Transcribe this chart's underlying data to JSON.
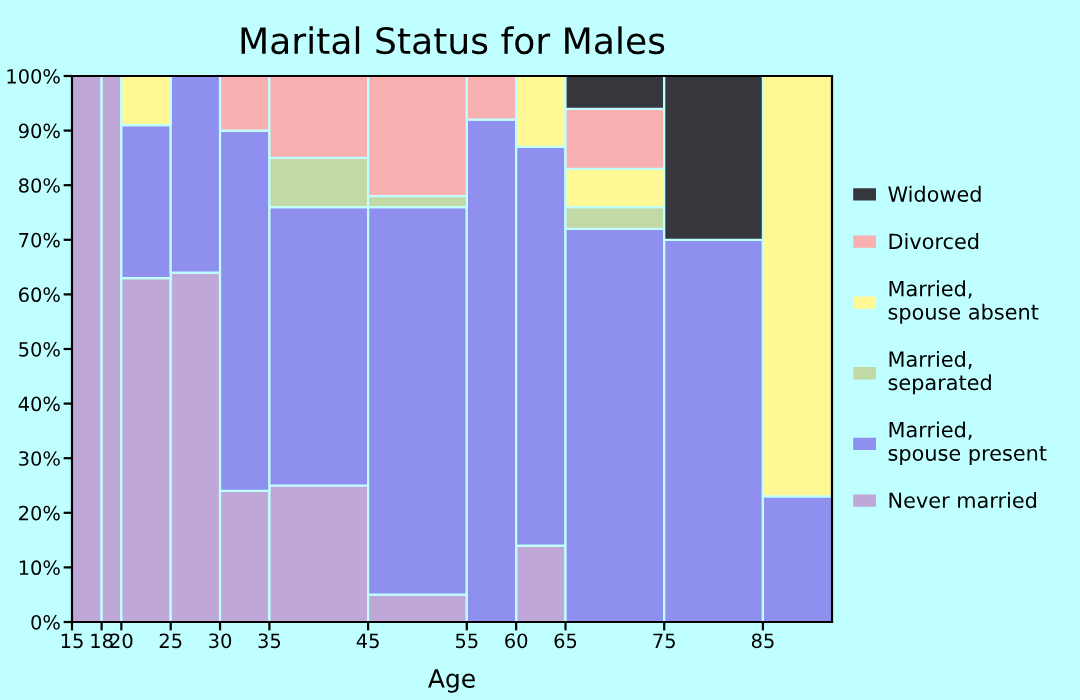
{
  "chart_data": {
    "type": "bar",
    "stacked": true,
    "title": "Marital Status for Males",
    "xlabel": "Age",
    "x": [
      16.5,
      19,
      22.5,
      27.5,
      32.5,
      40,
      50,
      57.5,
      62.5,
      70,
      80,
      88.5
    ],
    "xlim": [
      15,
      92
    ],
    "xticks": [
      15,
      18,
      20,
      25,
      30,
      35,
      45,
      55,
      60,
      65,
      75,
      85
    ],
    "ylim": [
      0,
      100
    ],
    "yticks": [
      {
        "value": 0,
        "label": "0%"
      },
      {
        "value": 10,
        "label": "10%"
      },
      {
        "value": 20,
        "label": "20%"
      },
      {
        "value": 30,
        "label": "30%"
      },
      {
        "value": 40,
        "label": "40%"
      },
      {
        "value": 50,
        "label": "50%"
      },
      {
        "value": 60,
        "label": "60%"
      },
      {
        "value": 70,
        "label": "70%"
      },
      {
        "value": 80,
        "label": "80%"
      },
      {
        "value": 90,
        "label": "90%"
      },
      {
        "value": 100,
        "label": "100%"
      }
    ],
    "grid": false,
    "legend": "right",
    "series": [
      {
        "name": "Never married",
        "color": "#bfa8d8",
        "values": [
          100,
          100,
          63,
          64,
          24,
          25,
          5,
          null,
          14,
          null,
          null,
          null
        ]
      },
      {
        "name": "Married, spouse present",
        "color": "#8f8ff0",
        "values": [
          null,
          null,
          28,
          36,
          66,
          51,
          71,
          92,
          73,
          72,
          70,
          23
        ]
      },
      {
        "name": "Married, separated",
        "color": "#c2d9a5",
        "values": [
          null,
          null,
          null,
          null,
          null,
          9,
          2,
          null,
          null,
          4,
          null,
          null
        ]
      },
      {
        "name": "Married, spouse absent",
        "color": "#fff894",
        "values": [
          null,
          null,
          9,
          null,
          null,
          null,
          null,
          null,
          13,
          7,
          null,
          77
        ]
      },
      {
        "name": "Divorced",
        "color": "#f9b0b0",
        "values": [
          null,
          null,
          null,
          null,
          10,
          15,
          22,
          8,
          null,
          11,
          null,
          null
        ]
      },
      {
        "name": "Widowed",
        "color": "#36373d",
        "values": [
          null,
          null,
          null,
          null,
          null,
          null,
          null,
          null,
          null,
          6,
          30,
          null
        ]
      }
    ]
  }
}
